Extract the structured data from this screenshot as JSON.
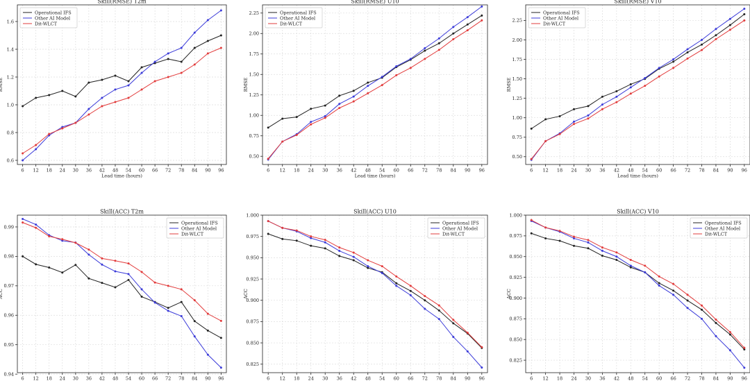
{
  "colors": {
    "Operational IFS": "#222222",
    "Other AI Model": "#3b3bd9",
    "Dit-WLCT": "#e23b3b",
    "grid": "#dddddd",
    "axis": "#222222"
  },
  "chart_data": [
    {
      "type": "line",
      "title": "Skill(RMSE) T2m",
      "xlabel": "Lead time (hours)",
      "ylabel": "RMSE",
      "x": [
        6,
        12,
        18,
        24,
        30,
        36,
        42,
        48,
        54,
        60,
        66,
        72,
        78,
        84,
        90,
        96
      ],
      "xlim": [
        3.6,
        98.4
      ],
      "ylim": [
        0.57,
        1.72
      ],
      "yticks": [
        0.6,
        0.8,
        1.0,
        1.2,
        1.4,
        1.6
      ],
      "ytick_labels": [
        "0.6",
        "0.8",
        "1.0",
        "1.2",
        "1.4",
        "1.6"
      ],
      "grid": true,
      "legend": "upper-left",
      "series": [
        {
          "name": "Operational IFS",
          "values": [
            0.99,
            1.05,
            1.07,
            1.1,
            1.06,
            1.16,
            1.18,
            1.21,
            1.17,
            1.27,
            1.3,
            1.33,
            1.31,
            1.41,
            1.46,
            1.5
          ]
        },
        {
          "name": "Other AI Model",
          "values": [
            0.6,
            0.68,
            0.78,
            0.84,
            0.87,
            0.97,
            1.05,
            1.11,
            1.14,
            1.23,
            1.31,
            1.37,
            1.41,
            1.52,
            1.61,
            1.68
          ]
        },
        {
          "name": "Dit-WLCT",
          "values": [
            0.65,
            0.71,
            0.79,
            0.83,
            0.87,
            0.93,
            0.99,
            1.02,
            1.05,
            1.11,
            1.17,
            1.2,
            1.23,
            1.29,
            1.37,
            1.41
          ]
        }
      ]
    },
    {
      "type": "line",
      "title": "Skill(RMSE) U10",
      "xlabel": "Lead time (hours)",
      "ylabel": "RMSE",
      "x": [
        6,
        12,
        18,
        24,
        30,
        36,
        42,
        48,
        54,
        60,
        66,
        72,
        78,
        84,
        90,
        96
      ],
      "xlim": [
        3.6,
        98.4
      ],
      "ylim": [
        0.4,
        2.35
      ],
      "yticks": [
        0.5,
        0.75,
        1.0,
        1.25,
        1.5,
        1.75,
        2.0,
        2.25
      ],
      "ytick_labels": [
        "0.50",
        "0.75",
        "1.00",
        "1.25",
        "1.50",
        "1.75",
        "2.00",
        "2.25"
      ],
      "grid": true,
      "legend": "upper-left",
      "series": [
        {
          "name": "Operational IFS",
          "values": [
            0.85,
            0.96,
            0.98,
            1.08,
            1.12,
            1.24,
            1.3,
            1.4,
            1.46,
            1.59,
            1.68,
            1.79,
            1.88,
            2.0,
            2.11,
            2.22
          ]
        },
        {
          "name": "Other AI Model",
          "values": [
            0.46,
            0.68,
            0.77,
            0.92,
            0.99,
            1.14,
            1.23,
            1.36,
            1.47,
            1.6,
            1.69,
            1.82,
            1.94,
            2.08,
            2.2,
            2.33
          ]
        },
        {
          "name": "Dit-WLCT",
          "values": [
            0.47,
            0.68,
            0.76,
            0.89,
            0.97,
            1.09,
            1.17,
            1.27,
            1.37,
            1.49,
            1.58,
            1.69,
            1.8,
            1.93,
            2.04,
            2.16
          ]
        }
      ]
    },
    {
      "type": "line",
      "title": "Skill(RMSE) V10",
      "xlabel": "Lead time (hours)",
      "ylabel": "RMSE",
      "x": [
        6,
        12,
        18,
        24,
        30,
        36,
        42,
        48,
        54,
        60,
        66,
        72,
        78,
        84,
        90,
        96
      ],
      "xlim": [
        3.6,
        98.4
      ],
      "ylim": [
        0.4,
        2.45
      ],
      "yticks": [
        0.5,
        0.75,
        1.0,
        1.25,
        1.5,
        1.75,
        2.0,
        2.25
      ],
      "ytick_labels": [
        "0.50",
        "0.75",
        "1.00",
        "1.25",
        "1.50",
        "1.75",
        "2.00",
        "2.25"
      ],
      "grid": true,
      "legend": "upper-left",
      "series": [
        {
          "name": "Operational IFS",
          "values": [
            0.86,
            0.98,
            1.02,
            1.11,
            1.15,
            1.27,
            1.34,
            1.43,
            1.5,
            1.63,
            1.72,
            1.84,
            1.94,
            2.06,
            2.19,
            2.33
          ]
        },
        {
          "name": "Other AI Model",
          "values": [
            0.46,
            0.7,
            0.8,
            0.95,
            1.03,
            1.17,
            1.27,
            1.39,
            1.51,
            1.64,
            1.75,
            1.88,
            2.0,
            2.14,
            2.27,
            2.4
          ]
        },
        {
          "name": "Dit-WLCT",
          "values": [
            0.47,
            0.7,
            0.79,
            0.92,
            0.99,
            1.11,
            1.2,
            1.31,
            1.41,
            1.53,
            1.64,
            1.76,
            1.87,
            2.01,
            2.13,
            2.25
          ]
        }
      ]
    },
    {
      "type": "line",
      "title": "Skill(ACC) T2m",
      "xlabel": "Lead time (hours)",
      "ylabel": "ACC",
      "x": [
        6,
        12,
        18,
        24,
        30,
        36,
        42,
        48,
        54,
        60,
        66,
        72,
        78,
        84,
        90,
        96
      ],
      "xlim": [
        3.6,
        98.4
      ],
      "ylim": [
        0.9405,
        0.994
      ],
      "yticks": [
        0.94,
        0.95,
        0.96,
        0.97,
        0.98,
        0.99
      ],
      "ytick_labels": [
        "0.94",
        "0.95",
        "0.96",
        "0.97",
        "0.98",
        "0.99"
      ],
      "grid": true,
      "legend": "upper-right",
      "series": [
        {
          "name": "Operational IFS",
          "values": [
            0.98,
            0.9773,
            0.9762,
            0.9745,
            0.9771,
            0.9725,
            0.971,
            0.9695,
            0.972,
            0.9663,
            0.9645,
            0.9625,
            0.9645,
            0.958,
            0.9548,
            0.9523
          ]
        },
        {
          "name": "Other AI Model",
          "values": [
            0.9927,
            0.9908,
            0.9872,
            0.9853,
            0.9847,
            0.9806,
            0.9772,
            0.9749,
            0.974,
            0.9688,
            0.9643,
            0.9615,
            0.9597,
            0.9528,
            0.9466,
            0.9422
          ]
        },
        {
          "name": "Dit-WLCT",
          "values": [
            0.9915,
            0.9897,
            0.9868,
            0.9858,
            0.9846,
            0.9823,
            0.9793,
            0.9785,
            0.9776,
            0.9747,
            0.9711,
            0.97,
            0.9688,
            0.9651,
            0.9605,
            0.9581
          ]
        }
      ]
    },
    {
      "type": "line",
      "title": "Skill(ACC) U10",
      "xlabel": "Lead time (hours)",
      "ylabel": "ACC",
      "x": [
        6,
        12,
        18,
        24,
        30,
        36,
        42,
        48,
        54,
        60,
        66,
        72,
        78,
        84,
        90,
        96
      ],
      "xlim": [
        3.6,
        98.4
      ],
      "ylim": [
        0.815,
        1.0
      ],
      "yticks": [
        0.825,
        0.85,
        0.875,
        0.9,
        0.925,
        0.95,
        0.975,
        1.0
      ],
      "ytick_labels": [
        "0.825",
        "0.850",
        "0.875",
        "0.900",
        "0.925",
        "0.950",
        "0.975",
        "1.000"
      ],
      "grid": true,
      "legend": "upper-right",
      "series": [
        {
          "name": "Operational IFS",
          "values": [
            0.978,
            0.972,
            0.97,
            0.964,
            0.961,
            0.952,
            0.947,
            0.938,
            0.933,
            0.92,
            0.911,
            0.9,
            0.888,
            0.873,
            0.861,
            0.844
          ]
        },
        {
          "name": "Other AI Model",
          "values": [
            0.993,
            0.985,
            0.981,
            0.973,
            0.968,
            0.958,
            0.951,
            0.94,
            0.932,
            0.917,
            0.906,
            0.89,
            0.878,
            0.857,
            0.84,
            0.821
          ]
        },
        {
          "name": "Dit-WLCT",
          "values": [
            0.993,
            0.985,
            0.982,
            0.975,
            0.971,
            0.962,
            0.956,
            0.947,
            0.94,
            0.928,
            0.917,
            0.905,
            0.894,
            0.877,
            0.862,
            0.845
          ]
        }
      ]
    },
    {
      "type": "line",
      "title": "Skill(ACC) V10",
      "xlabel": "Lead time (hours)",
      "ylabel": "ACC",
      "x": [
        6,
        12,
        18,
        24,
        30,
        36,
        42,
        48,
        54,
        60,
        66,
        72,
        78,
        84,
        90,
        96
      ],
      "xlim": [
        3.6,
        98.4
      ],
      "ylim": [
        0.81,
        1.0
      ],
      "yticks": [
        0.825,
        0.85,
        0.875,
        0.9,
        0.925,
        0.95,
        0.975,
        1.0
      ],
      "ytick_labels": [
        "0.825",
        "0.850",
        "0.875",
        "0.900",
        "0.925",
        "0.950",
        "0.975",
        "1.000"
      ],
      "grid": true,
      "legend": "upper-right",
      "series": [
        {
          "name": "Operational IFS",
          "values": [
            0.978,
            0.972,
            0.969,
            0.963,
            0.96,
            0.951,
            0.946,
            0.937,
            0.931,
            0.918,
            0.909,
            0.897,
            0.886,
            0.87,
            0.856,
            0.838
          ]
        },
        {
          "name": "Other AI Model",
          "values": [
            0.993,
            0.985,
            0.98,
            0.972,
            0.967,
            0.957,
            0.95,
            0.939,
            0.931,
            0.915,
            0.904,
            0.888,
            0.875,
            0.854,
            0.837,
            0.816
          ]
        },
        {
          "name": "Dit-WLCT",
          "values": [
            0.994,
            0.985,
            0.981,
            0.974,
            0.97,
            0.961,
            0.955,
            0.946,
            0.939,
            0.926,
            0.917,
            0.904,
            0.891,
            0.874,
            0.859,
            0.84
          ]
        }
      ]
    }
  ]
}
